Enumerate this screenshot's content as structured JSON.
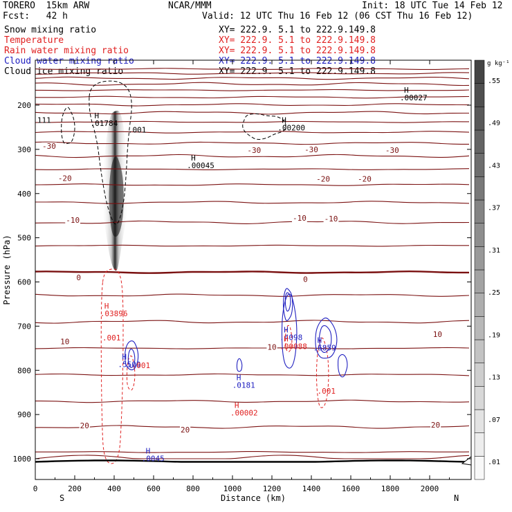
{
  "header": {
    "model": "TORERO  15km ARW",
    "center": "NCAR/MMM",
    "init": "Init: 18 UTC Tue 14 Feb 12",
    "fcst": "Fcst:   42 h",
    "valid": "Valid: 12 UTC Thu 16 Feb 12 (06 CST Thu 16 Feb 12)"
  },
  "colors": {
    "snow": "#000000",
    "temperature": "#7a0f0f",
    "rain": "#e02020",
    "cloud_water": "#2020c0",
    "cloud_ice": "#000000",
    "terrain": "#000000"
  },
  "chart_data": {
    "type": "cross-section contour",
    "xlabel": "Distance (km)",
    "ylabel": "Pressure (hPa)",
    "x_ticks": [
      "0",
      "200",
      "400",
      "600",
      "800",
      "1000",
      "1200",
      "1400",
      "1600",
      "1800",
      "2000"
    ],
    "y_ticks": [
      "200",
      "300",
      "400",
      "500",
      "600",
      "700",
      "800",
      "900",
      "1000"
    ],
    "xlim": [
      0,
      2200
    ],
    "ylim": [
      1050,
      125
    ],
    "x_endpoints": {
      "left": "S",
      "right": "N"
    },
    "legend": [
      {
        "name": "Snow mixing ratio",
        "color": "#000000",
        "xy": "XY= 222.9.  5.1 to 222.9.149.8"
      },
      {
        "name": "Temperature",
        "color": "#e02020",
        "xy": "XY= 222.9.  5.1 to 222.9.149.8"
      },
      {
        "name": "Rain water mixing ratio",
        "color": "#e02020",
        "xy": "XY= 222.9.  5.1 to 222.9.149.8"
      },
      {
        "name": "Cloud water mixing ratio",
        "color": "#2020c0",
        "xy": "XY= 222.9.  5.1 to 222.9.149.8"
      },
      {
        "name": "Cloud ice mixing ratio",
        "color": "#000000",
        "xy": "XY= 222.9.  5.1 to 222.9.149.8"
      }
    ],
    "colorbar": {
      "unit": "g kg⁻¹",
      "labels": [
        ".01",
        ".07",
        ".13",
        ".19",
        ".25",
        ".31",
        ".37",
        ".43",
        ".49",
        ".55"
      ]
    },
    "temperature_contour_labels": [
      {
        "text": "-30",
        "x": 70,
        "p": 292
      },
      {
        "text": "-30",
        "x": 1110,
        "p": 302
      },
      {
        "text": "-30",
        "x": 1400,
        "p": 300
      },
      {
        "text": "-30",
        "x": 1810,
        "p": 302
      },
      {
        "text": "-20",
        "x": 150,
        "p": 365
      },
      {
        "text": "-20",
        "x": 1460,
        "p": 367
      },
      {
        "text": "-20",
        "x": 1670,
        "p": 367
      },
      {
        "text": "-10",
        "x": 190,
        "p": 460
      },
      {
        "text": "-10",
        "x": 1340,
        "p": 455
      },
      {
        "text": "-10",
        "x": 1500,
        "p": 457
      },
      {
        "text": "0",
        "x": 220,
        "p": 590
      },
      {
        "text": "0",
        "x": 1370,
        "p": 594
      },
      {
        "text": "10",
        "x": 150,
        "p": 735
      },
      {
        "text": "10",
        "x": 1200,
        "p": 747
      },
      {
        "text": "10",
        "x": 2040,
        "p": 718
      },
      {
        "text": "20",
        "x": 250,
        "p": 925
      },
      {
        "text": "20",
        "x": 760,
        "p": 934
      },
      {
        "text": "20",
        "x": 2030,
        "p": 923
      }
    ],
    "extrema": [
      {
        "mark": "H",
        "value": ".01784",
        "x": 300,
        "p": 230,
        "color": "#000000"
      },
      {
        "mark": "H",
        "value": ".00045",
        "x": 790,
        "p": 325,
        "color": "#000000"
      },
      {
        "mark": "H",
        "value": ".00200",
        "x": 1250,
        "p": 240,
        "color": "#000000"
      },
      {
        "mark": "H",
        "value": ".00027",
        "x": 1870,
        "p": 172,
        "color": "#000000"
      },
      {
        "mark": "H",
        "value": ".03896",
        "x": 350,
        "p": 660,
        "color": "#e02020"
      },
      {
        "mark": "H",
        "value": ".5509",
        "x": 440,
        "p": 775,
        "color": "#2020c0"
      },
      {
        "mark": "H",
        "value": ".0181",
        "x": 1020,
        "p": 822,
        "color": "#2020c0"
      },
      {
        "mark": "H",
        "value": ".4098",
        "x": 1260,
        "p": 714,
        "color": "#2020c0"
      },
      {
        "mark": "H",
        "value": ".00088",
        "x": 1260,
        "p": 735,
        "color": "#e02020"
      },
      {
        "mark": "H",
        "value": ".6859",
        "x": 1430,
        "p": 738,
        "color": "#2020c0"
      },
      {
        "mark": "H",
        "value": ".00002",
        "x": 1010,
        "p": 885,
        "color": "#e02020"
      },
      {
        "mark": "H",
        "value": ".0045",
        "x": 560,
        "p": 988,
        "color": "#2020c0"
      }
    ],
    "contour_value_labels": [
      {
        "text": ".001",
        "x": 470,
        "p": 262,
        "color": "#000000"
      },
      {
        "text": ".001",
        "x": 340,
        "p": 732,
        "color": "#e02020"
      },
      {
        "text": ".001",
        "x": 490,
        "p": 795,
        "color": "#e02020"
      },
      {
        "text": ".001",
        "x": 1430,
        "p": 853,
        "color": "#e02020"
      },
      {
        "text": "111",
        "x": 10,
        "p": 240,
        "color": "#000000"
      }
    ]
  }
}
